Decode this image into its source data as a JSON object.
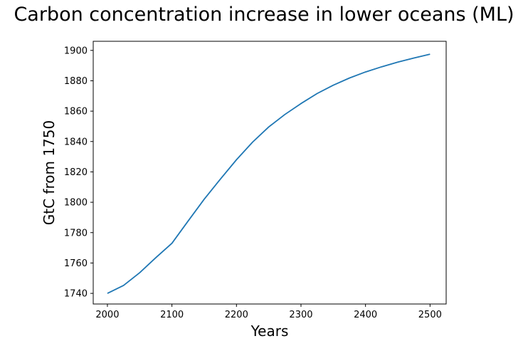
{
  "chart_data": {
    "type": "line",
    "title": "Carbon concentration increase in lower oceans (ML)",
    "xlabel": "Years",
    "ylabel": "GtC from 1750",
    "xlim": [
      1978,
      2525
    ],
    "ylim": [
      1733,
      1906
    ],
    "x_ticks": [
      2000,
      2100,
      2200,
      2300,
      2400,
      2500
    ],
    "y_ticks": [
      1740,
      1760,
      1780,
      1800,
      1820,
      1840,
      1860,
      1880,
      1900
    ],
    "grid": false,
    "series": [
      {
        "color": "#1f77b4",
        "x": [
          2000,
          2025,
          2050,
          2075,
          2100,
          2125,
          2150,
          2175,
          2200,
          2225,
          2250,
          2275,
          2300,
          2325,
          2350,
          2375,
          2400,
          2425,
          2450,
          2475,
          2500
        ],
        "y": [
          1740.0,
          1745.2,
          1753.6,
          1763.5,
          1773.0,
          1787.6,
          1802.0,
          1815.2,
          1828.0,
          1839.6,
          1849.6,
          1857.8,
          1865.0,
          1871.6,
          1877.1,
          1881.8,
          1885.8,
          1889.2,
          1892.3,
          1895.0,
          1897.5
        ]
      }
    ]
  }
}
